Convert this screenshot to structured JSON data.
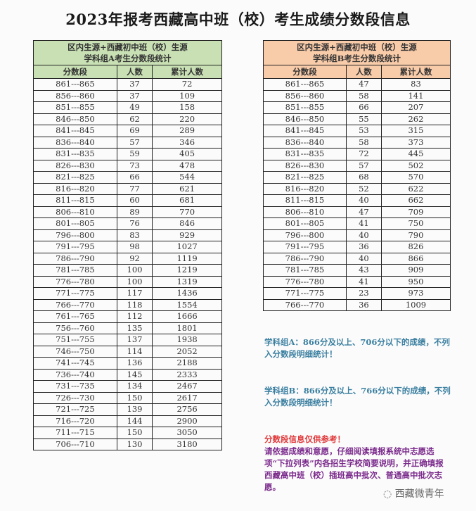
{
  "title": "2023年报考西藏高中班（校）考生成绩分数段信息",
  "tableA": {
    "caption1": "区内生源+西藏初中班（校）生源",
    "caption2": "学科组A考生分数段统计",
    "headers": [
      "分数段",
      "人数",
      "累计人数"
    ],
    "rows": [
      [
        "861---865",
        "37",
        "72"
      ],
      [
        "856---860",
        "37",
        "109"
      ],
      [
        "851---855",
        "49",
        "158"
      ],
      [
        "846---850",
        "62",
        "220"
      ],
      [
        "841---845",
        "69",
        "289"
      ],
      [
        "836---840",
        "57",
        "346"
      ],
      [
        "831---835",
        "59",
        "405"
      ],
      [
        "826---830",
        "73",
        "478"
      ],
      [
        "821---825",
        "66",
        "544"
      ],
      [
        "816---820",
        "77",
        "621"
      ],
      [
        "811---815",
        "60",
        "681"
      ],
      [
        "806---810",
        "89",
        "770"
      ],
      [
        "801---805",
        "76",
        "846"
      ],
      [
        "796---800",
        "83",
        "929"
      ],
      [
        "791---795",
        "98",
        "1027"
      ],
      [
        "786---790",
        "92",
        "1119"
      ],
      [
        "781---785",
        "100",
        "1219"
      ],
      [
        "776---780",
        "100",
        "1319"
      ],
      [
        "771---775",
        "117",
        "1436"
      ],
      [
        "766---770",
        "118",
        "1554"
      ],
      [
        "761---765",
        "112",
        "1666"
      ],
      [
        "756---760",
        "135",
        "1801"
      ],
      [
        "751---755",
        "137",
        "1938"
      ],
      [
        "746---750",
        "114",
        "2052"
      ],
      [
        "741---745",
        "136",
        "2188"
      ],
      [
        "736---740",
        "145",
        "2333"
      ],
      [
        "731---735",
        "134",
        "2467"
      ],
      [
        "726---730",
        "150",
        "2617"
      ],
      [
        "721---725",
        "139",
        "2756"
      ],
      [
        "716---720",
        "144",
        "2900"
      ],
      [
        "711---715",
        "150",
        "3050"
      ],
      [
        "706---710",
        "130",
        "3180"
      ]
    ]
  },
  "tableB": {
    "caption1": "区内生源+西藏初中班（校）生源",
    "caption2": "学科组B考生分数段统计",
    "headers": [
      "分数段",
      "人数",
      "累计人数"
    ],
    "rows": [
      [
        "861---865",
        "47",
        "83"
      ],
      [
        "856---860",
        "58",
        "141"
      ],
      [
        "851---855",
        "66",
        "207"
      ],
      [
        "846---850",
        "55",
        "262"
      ],
      [
        "841---845",
        "53",
        "315"
      ],
      [
        "836---840",
        "58",
        "373"
      ],
      [
        "831---835",
        "72",
        "445"
      ],
      [
        "826---830",
        "57",
        "502"
      ],
      [
        "821---825",
        "68",
        "570"
      ],
      [
        "816---820",
        "52",
        "622"
      ],
      [
        "811---815",
        "40",
        "662"
      ],
      [
        "806---810",
        "47",
        "709"
      ],
      [
        "801---805",
        "41",
        "750"
      ],
      [
        "796---800",
        "40",
        "790"
      ],
      [
        "791---795",
        "36",
        "826"
      ],
      [
        "786---790",
        "40",
        "866"
      ],
      [
        "781---785",
        "43",
        "909"
      ],
      [
        "776---780",
        "41",
        "950"
      ],
      [
        "771---775",
        "23",
        "973"
      ],
      [
        "766---770",
        "36",
        "1009"
      ]
    ]
  },
  "notes": {
    "a": "学科组A：866分及以上、706分以下的成绩，不列入分数段明细统计！",
    "b": "学科组B：866分及以上、766分以下的成绩，不列入分数段明细统计！",
    "ref": "分数段信息仅供参考！",
    "advice": "请依据成绩和意愿，仔细阅读填报系统中志愿选项“下拉列表”内各招生学校简要说明，并正确填报西藏高中班（校）插班高中批次、普通高中批次志愿。"
  },
  "watermark": "西藏微青年",
  "colors": {
    "headerA": "#c9e0b4",
    "headerB": "#f8cba9",
    "noteBlue": "#3a7fa0",
    "noteRed": "#e0383a",
    "notePurple": "#7b2a8c"
  }
}
